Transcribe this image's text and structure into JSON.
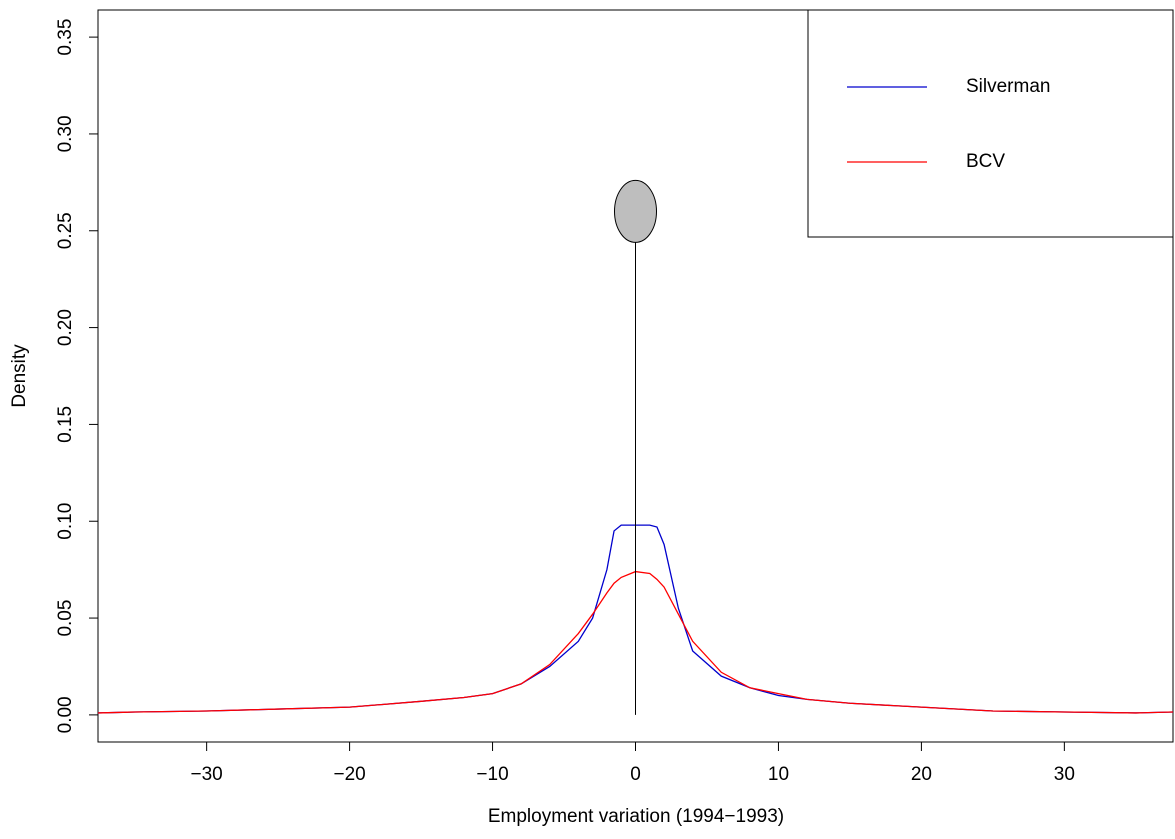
{
  "chart_data": {
    "type": "line",
    "xlabel": "Employment variation (1994−1993)",
    "ylabel": "Density",
    "x": [
      -37.6,
      -35,
      -30,
      -25,
      -20,
      -15,
      -12,
      -10,
      -8,
      -6,
      -4,
      -3,
      -2,
      -1.5,
      -1,
      0,
      1,
      1.5,
      2,
      3,
      4,
      6,
      8,
      10,
      12,
      15,
      20,
      25,
      30,
      35,
      37.6
    ],
    "series": [
      {
        "name": "Silverman",
        "color": "#0000cd",
        "values": [
          0.001,
          0.0015,
          0.002,
          0.003,
          0.004,
          0.007,
          0.009,
          0.011,
          0.016,
          0.025,
          0.038,
          0.05,
          0.075,
          0.095,
          0.098,
          0.098,
          0.098,
          0.097,
          0.088,
          0.055,
          0.033,
          0.02,
          0.014,
          0.01,
          0.008,
          0.006,
          0.004,
          0.002,
          0.0015,
          0.001,
          0.0015
        ]
      },
      {
        "name": "BCV",
        "color": "#ff0000",
        "values": [
          0.001,
          0.0015,
          0.002,
          0.003,
          0.004,
          0.007,
          0.009,
          0.011,
          0.016,
          0.026,
          0.042,
          0.052,
          0.063,
          0.068,
          0.071,
          0.074,
          0.073,
          0.07,
          0.066,
          0.052,
          0.038,
          0.022,
          0.014,
          0.011,
          0.008,
          0.006,
          0.004,
          0.002,
          0.0015,
          0.001,
          0.0015
        ]
      }
    ],
    "spike": {
      "x": 0,
      "y": 0.26,
      "color": "#bebebe"
    },
    "xlim": [
      -37.6,
      37.6
    ],
    "ylim": [
      -0.014,
      0.364
    ],
    "xticks": [
      {
        "value": -30,
        "label": "−30"
      },
      {
        "value": -20,
        "label": "−20"
      },
      {
        "value": -10,
        "label": "−10"
      },
      0,
      10,
      20,
      30
    ],
    "yticks": [
      {
        "value": 0,
        "label": "0.00"
      },
      0.05,
      {
        "value": 0.1,
        "label": "0.10"
      },
      0.15,
      {
        "value": 0.2,
        "label": "0.20"
      },
      0.25,
      {
        "value": 0.3,
        "label": "0.30"
      },
      0.35
    ],
    "grid": false,
    "legend": "top-right"
  }
}
